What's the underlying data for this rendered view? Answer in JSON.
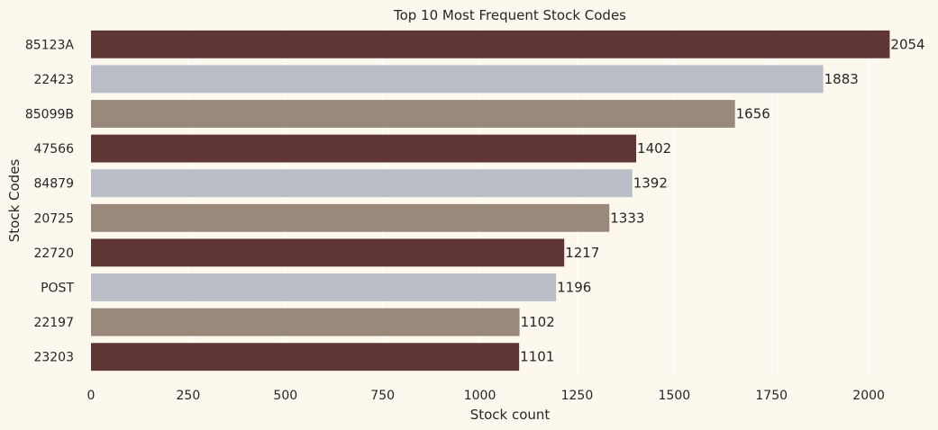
{
  "chart_data": {
    "type": "bar",
    "orientation": "horizontal",
    "title": "Top 10 Most Frequent Stock Codes",
    "xlabel": "Stock count",
    "ylabel": "Stock Codes",
    "categories": [
      "85123A",
      "22423",
      "85099B",
      "47566",
      "84879",
      "20725",
      "22720",
      "POST",
      "22197",
      "23203"
    ],
    "values": [
      2054,
      1883,
      1656,
      1402,
      1392,
      1333,
      1217,
      1196,
      1102,
      1101
    ],
    "data_labels": [
      "2054",
      "1883",
      "1656",
      "1402",
      "1392",
      "1333",
      "1217",
      "1196",
      "1102",
      "1101"
    ],
    "xlim": [
      0,
      2155
    ],
    "xticks": [
      0,
      250,
      500,
      750,
      1000,
      1250,
      1500,
      1750,
      2000
    ],
    "xtick_labels": [
      "0",
      "250",
      "500",
      "750",
      "1000",
      "1250",
      "1500",
      "1750",
      "2000"
    ],
    "grid": true,
    "bar_colors": [
      "#603536",
      "#b9bec6",
      "#9a887a"
    ],
    "background_color": "#fdf8ed",
    "grid_color": "#ffffff"
  }
}
